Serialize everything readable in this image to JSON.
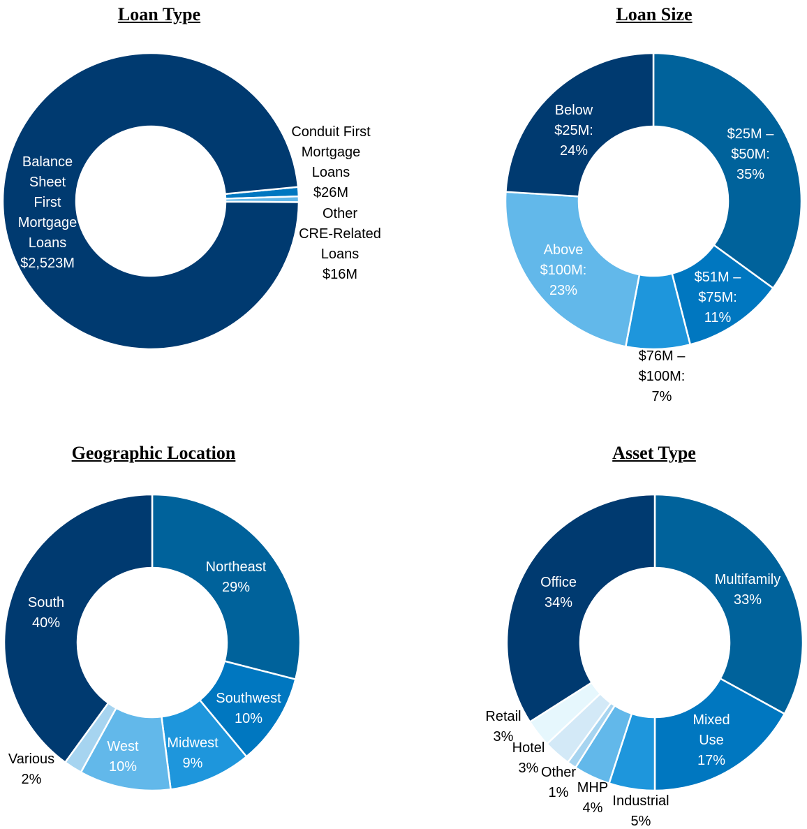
{
  "chart_data": [
    {
      "type": "pie",
      "title": "Loan Type",
      "donut": true,
      "slices": [
        {
          "label": "Conduit First\nMortgage\nLoans\n$26M",
          "name": "Conduit First Mortgage Loans",
          "value": 26,
          "unit": "$M",
          "color": "#0077c0"
        },
        {
          "label": "Other\nCRE-Related\nLoans\n$16M",
          "name": "Other CRE-Related Loans",
          "value": 16,
          "unit": "$M",
          "color": "#62b8ea"
        },
        {
          "label": "Balance\nSheet\nFirst\nMortgage\nLoans\n$2,523M",
          "name": "Balance Sheet First Mortgage Loans",
          "value": 2523,
          "unit": "$M",
          "color": "#003a70"
        }
      ]
    },
    {
      "type": "pie",
      "title": "Loan Size",
      "donut": true,
      "slices": [
        {
          "label": "$25M –\n$50M:\n35%",
          "value": 35,
          "color": "#00629b"
        },
        {
          "label": "$51M –\n$75M:\n11%",
          "value": 11,
          "color": "#0077c0"
        },
        {
          "label": "$76M –\n$100M:\n7%",
          "value": 7,
          "color": "#1e96dc"
        },
        {
          "label": "Above\n$100M:\n23%",
          "value": 23,
          "color": "#62b8ea"
        },
        {
          "label": "Below\n$25M:\n24%",
          "value": 24,
          "color": "#003a70"
        }
      ]
    },
    {
      "type": "pie",
      "title": "Geographic Location",
      "donut": true,
      "slices": [
        {
          "label": "Northeast\n29%",
          "value": 29,
          "color": "#00629b"
        },
        {
          "label": "Southwest\n10%",
          "value": 10,
          "color": "#0077c0"
        },
        {
          "label": "Midwest\n9%",
          "value": 9,
          "color": "#1e96dc"
        },
        {
          "label": "West\n10%",
          "value": 10,
          "color": "#62b8ea"
        },
        {
          "label": "Various\n2%",
          "value": 2,
          "color": "#a6d4f0"
        },
        {
          "label": "South\n40%",
          "value": 40,
          "color": "#003a70"
        }
      ]
    },
    {
      "type": "pie",
      "title": "Asset Type",
      "donut": true,
      "slices": [
        {
          "label": "Multifamily\n33%",
          "value": 33,
          "color": "#00629b"
        },
        {
          "label": "Mixed\nUse\n17%",
          "value": 17,
          "color": "#0077c0"
        },
        {
          "label": "Industrial\n5%",
          "value": 5,
          "color": "#1e96dc"
        },
        {
          "label": "MHP\n4%",
          "value": 4,
          "color": "#62b8ea"
        },
        {
          "label": "Other\n1%",
          "value": 1,
          "color": "#a6d4f0"
        },
        {
          "label": "Hotel\n3%",
          "value": 3,
          "color": "#d3e9f7"
        },
        {
          "label": "Retail\n3%",
          "value": 3,
          "color": "#e6f7fd"
        },
        {
          "label": "Office\n34%",
          "value": 34,
          "color": "#003a70"
        }
      ]
    }
  ]
}
